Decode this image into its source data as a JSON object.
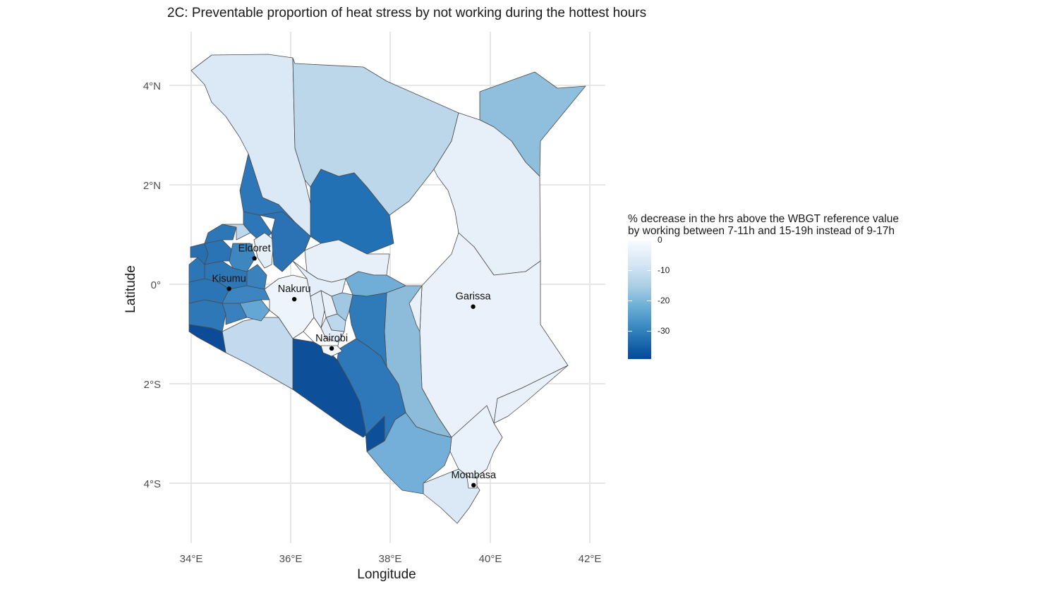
{
  "title": "2C: Preventable proportion of heat stress by not working during the hottest hours",
  "axes": {
    "xlabel": "Longitude",
    "ylabel": "Latitude",
    "x_ticks": [
      "34°E",
      "36°E",
      "38°E",
      "40°E",
      "42°E"
    ],
    "y_ticks": [
      "4°N",
      "2°N",
      "0°",
      "2°S",
      "4°S"
    ]
  },
  "legend": {
    "title_line1": "% decrease in the hrs above the WBGT reference value",
    "title_line2": "by working between 7-11h and 15-19h instead of 9-17h",
    "ticks": [
      "0",
      "-10",
      "-20",
      "-30"
    ],
    "colors": [
      "#f7fbff",
      "#c6dbef",
      "#6baed6",
      "#2171b5",
      "#08479a"
    ]
  },
  "cities": [
    {
      "name": "Eldoret",
      "lon": 35.27,
      "lat": 0.52
    },
    {
      "name": "Kisumu",
      "lon": 34.76,
      "lat": -0.09
    },
    {
      "name": "Nakuru",
      "lon": 36.07,
      "lat": -0.3
    },
    {
      "name": "Nairobi",
      "lon": 36.82,
      "lat": -1.29
    },
    {
      "name": "Garissa",
      "lon": 39.66,
      "lat": -0.45
    },
    {
      "name": "Mombasa",
      "lon": 39.67,
      "lat": -4.04
    }
  ]
}
